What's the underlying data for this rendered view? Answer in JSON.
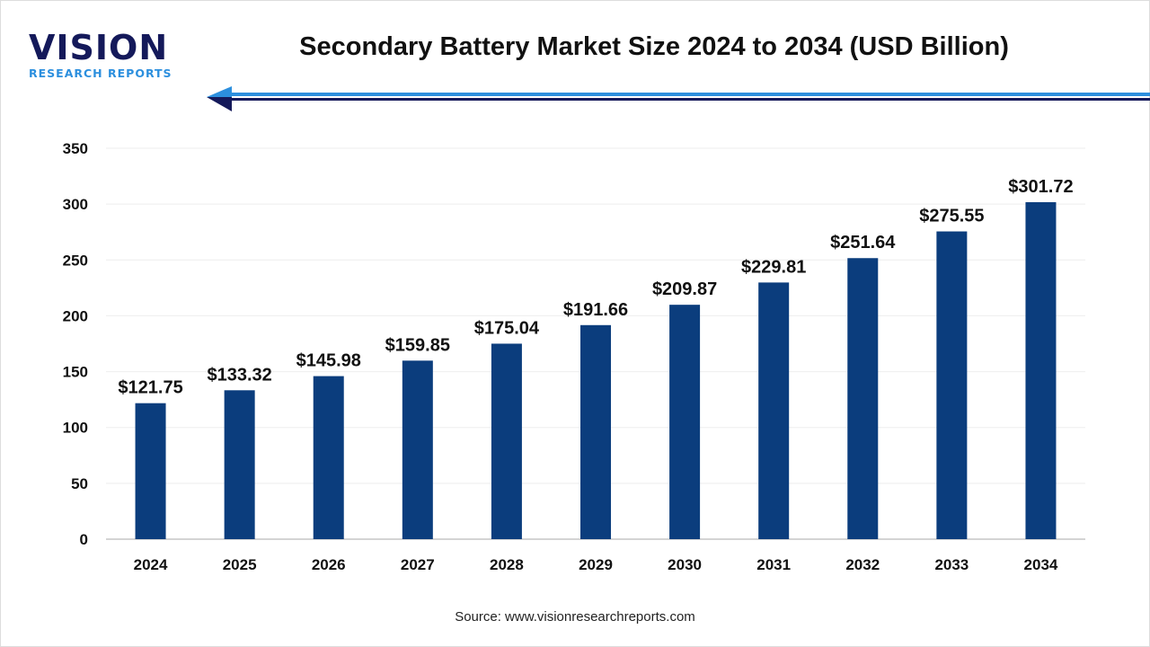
{
  "logo": {
    "brand": "VISION",
    "sub": "RESEARCH REPORTS"
  },
  "title": "Secondary Battery Market Size 2024 to 2034 (USD Billion)",
  "source": "Source: www.visionresearchreports.com",
  "colors": {
    "bar": "#0b3d7d",
    "accent": "#2c8fde",
    "dark": "#14195a"
  },
  "chart_data": {
    "type": "bar",
    "title": "Secondary Battery Market Size 2024 to 2034 (USD Billion)",
    "categories": [
      "2024",
      "2025",
      "2026",
      "2027",
      "2028",
      "2029",
      "2030",
      "2031",
      "2032",
      "2033",
      "2034"
    ],
    "values": [
      121.75,
      133.32,
      145.98,
      159.85,
      175.04,
      191.66,
      209.87,
      229.81,
      251.64,
      275.55,
      301.72
    ],
    "data_labels": [
      "$121.75",
      "$133.32",
      "$145.98",
      "$159.85",
      "$175.04",
      "$191.66",
      "$209.87",
      "$229.81",
      "$251.64",
      "$275.55",
      "$301.72"
    ],
    "ylim": [
      0,
      350
    ],
    "yticks": [
      0,
      50,
      100,
      150,
      200,
      250,
      300,
      350
    ],
    "grid": true,
    "xlabel": "",
    "ylabel": ""
  }
}
